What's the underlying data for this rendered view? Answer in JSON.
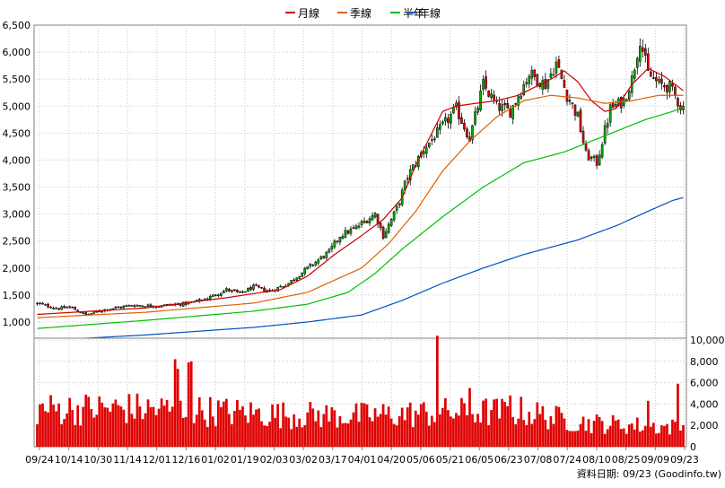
{
  "legend": [
    {
      "label": "月線",
      "color": "#cc0000"
    },
    {
      "label": "季線",
      "color": "#e06000"
    },
    {
      "label": "半年",
      "color": "#00c000"
    },
    {
      "label": "年線",
      "color": "#0050c0"
    }
  ],
  "footer": "資料日期: 09/23  (Goodinfo.tw)",
  "chart_data": [
    {
      "type": "candlestick",
      "title": "",
      "ylim": [
        700,
        6500
      ],
      "yticks": [
        "1,000",
        "1,500",
        "2,000",
        "2,500",
        "3,000",
        "3,500",
        "4,000",
        "4,500",
        "5,000",
        "5,500",
        "6,000",
        "6,500"
      ],
      "ytick_values": [
        1000,
        1500,
        2000,
        2500,
        3000,
        3500,
        4000,
        4500,
        5000,
        5500,
        6000,
        6500
      ],
      "grid": true,
      "n_points": 240,
      "up_color": "#00b000",
      "down_color": "#e00000",
      "close_anchors": [
        [
          0,
          1340
        ],
        [
          8,
          1250
        ],
        [
          12,
          1280
        ],
        [
          18,
          1130
        ],
        [
          25,
          1230
        ],
        [
          35,
          1310
        ],
        [
          45,
          1300
        ],
        [
          55,
          1340
        ],
        [
          62,
          1420
        ],
        [
          70,
          1600
        ],
        [
          75,
          1530
        ],
        [
          80,
          1650
        ],
        [
          86,
          1570
        ],
        [
          93,
          1720
        ],
        [
          100,
          2000
        ],
        [
          108,
          2300
        ],
        [
          112,
          2600
        ],
        [
          118,
          2750
        ],
        [
          122,
          2900
        ],
        [
          125,
          3000
        ],
        [
          128,
          2600
        ],
        [
          133,
          3100
        ],
        [
          137,
          3700
        ],
        [
          143,
          4200
        ],
        [
          148,
          4500
        ],
        [
          155,
          4950
        ],
        [
          160,
          4400
        ],
        [
          165,
          5400
        ],
        [
          170,
          5000
        ],
        [
          175,
          4900
        ],
        [
          182,
          5600
        ],
        [
          188,
          5400
        ],
        [
          192,
          5800
        ],
        [
          196,
          5200
        ],
        [
          200,
          4800
        ],
        [
          203,
          4100
        ],
        [
          207,
          3950
        ],
        [
          212,
          4950
        ],
        [
          217,
          5100
        ],
        [
          220,
          5500
        ],
        [
          223,
          6250
        ],
        [
          226,
          5600
        ],
        [
          230,
          5400
        ],
        [
          234,
          5350
        ],
        [
          238,
          5000
        ],
        [
          240,
          4950
        ]
      ],
      "ma_anchors": {
        "月線": [
          [
            0,
            1140
          ],
          [
            40,
            1260
          ],
          [
            70,
            1450
          ],
          [
            90,
            1600
          ],
          [
            100,
            1850
          ],
          [
            110,
            2250
          ],
          [
            120,
            2600
          ],
          [
            128,
            2900
          ],
          [
            135,
            3300
          ],
          [
            140,
            3900
          ],
          [
            145,
            4400
          ],
          [
            150,
            4900
          ],
          [
            155,
            5000
          ],
          [
            162,
            5050
          ],
          [
            170,
            5100
          ],
          [
            178,
            5200
          ],
          [
            184,
            5350
          ],
          [
            190,
            5500
          ],
          [
            195,
            5650
          ],
          [
            200,
            5450
          ],
          [
            205,
            5100
          ],
          [
            210,
            4900
          ],
          [
            214,
            4950
          ],
          [
            220,
            5400
          ],
          [
            226,
            5700
          ],
          [
            232,
            5550
          ],
          [
            240,
            5250
          ]
        ],
        "季線": [
          [
            0,
            1080
          ],
          [
            40,
            1180
          ],
          [
            80,
            1350
          ],
          [
            100,
            1550
          ],
          [
            120,
            2000
          ],
          [
            130,
            2450
          ],
          [
            140,
            3050
          ],
          [
            150,
            3800
          ],
          [
            160,
            4350
          ],
          [
            170,
            4800
          ],
          [
            180,
            5100
          ],
          [
            190,
            5200
          ],
          [
            200,
            5150
          ],
          [
            210,
            5050
          ],
          [
            220,
            5100
          ],
          [
            230,
            5200
          ],
          [
            240,
            5200
          ]
        ],
        "半年": [
          [
            0,
            880
          ],
          [
            40,
            1030
          ],
          [
            80,
            1200
          ],
          [
            100,
            1330
          ],
          [
            115,
            1550
          ],
          [
            125,
            1900
          ],
          [
            135,
            2350
          ],
          [
            150,
            2950
          ],
          [
            165,
            3500
          ],
          [
            180,
            3950
          ],
          [
            195,
            4150
          ],
          [
            205,
            4350
          ],
          [
            215,
            4550
          ],
          [
            225,
            4750
          ],
          [
            235,
            4900
          ],
          [
            240,
            5000
          ]
        ],
        "年線": [
          [
            0,
            650
          ],
          [
            40,
            760
          ],
          [
            80,
            900
          ],
          [
            100,
            1000
          ],
          [
            120,
            1130
          ],
          [
            135,
            1400
          ],
          [
            150,
            1720
          ],
          [
            165,
            2000
          ],
          [
            180,
            2250
          ],
          [
            200,
            2520
          ],
          [
            215,
            2800
          ],
          [
            225,
            3030
          ],
          [
            235,
            3250
          ],
          [
            240,
            3320
          ]
        ]
      }
    },
    {
      "type": "bar",
      "title": "",
      "series_name": "volume",
      "color": "#e00000",
      "ylim": [
        0,
        10000
      ],
      "yticks": [
        "0",
        "2,000",
        "4,000",
        "6,000",
        "8,000",
        "10,000"
      ],
      "ytick_values": [
        0,
        2000,
        4000,
        6000,
        8000,
        10000
      ],
      "spikes": [
        [
          51,
          8200
        ],
        [
          52,
          7300
        ],
        [
          56,
          7900
        ],
        [
          57,
          8000
        ],
        [
          148,
          10400
        ],
        [
          160,
          5500
        ],
        [
          175,
          4800
        ],
        [
          226,
          4300
        ],
        [
          237,
          5900
        ]
      ],
      "base_anchors": [
        [
          0,
          3500
        ],
        [
          30,
          3600
        ],
        [
          60,
          3400
        ],
        [
          90,
          3000
        ],
        [
          120,
          2900
        ],
        [
          150,
          3200
        ],
        [
          180,
          3300
        ],
        [
          200,
          2300
        ],
        [
          220,
          2000
        ],
        [
          240,
          1800
        ]
      ]
    }
  ],
  "x_axis": {
    "labels": [
      "09/24",
      "10/14",
      "10/30",
      "11/14",
      "12/01",
      "12/16",
      "01/02",
      "01/19",
      "02/03",
      "03/02",
      "03/17",
      "04/01",
      "04/20",
      "05/06",
      "05/21",
      "06/05",
      "06/23",
      "07/08",
      "07/24",
      "08/10",
      "08/25",
      "09/09",
      "09/23"
    ]
  }
}
